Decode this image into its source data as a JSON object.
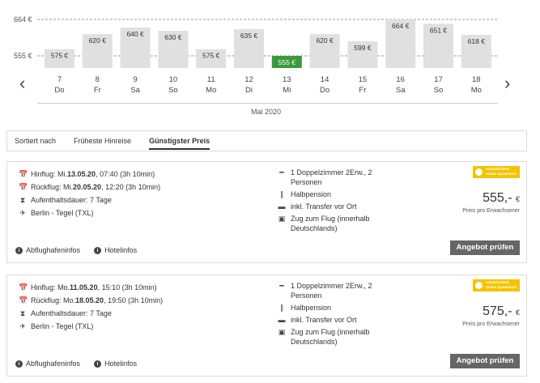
{
  "chart_data": {
    "type": "bar",
    "y_ticks": [
      "664 €",
      "555 €"
    ],
    "categories": [
      "7 Do",
      "8 Fr",
      "9 Sa",
      "10 So",
      "11 Mo",
      "12 Di",
      "13 Mi",
      "14 Do",
      "15 Fr",
      "16 Sa",
      "17 So",
      "18 Mo"
    ],
    "days": [
      {
        "num": "7",
        "wd": "Do"
      },
      {
        "num": "8",
        "wd": "Fr"
      },
      {
        "num": "9",
        "wd": "Sa"
      },
      {
        "num": "10",
        "wd": "So"
      },
      {
        "num": "11",
        "wd": "Mo"
      },
      {
        "num": "12",
        "wd": "Di"
      },
      {
        "num": "13",
        "wd": "Mi"
      },
      {
        "num": "14",
        "wd": "Do"
      },
      {
        "num": "15",
        "wd": "Fr"
      },
      {
        "num": "16",
        "wd": "Sa"
      },
      {
        "num": "17",
        "wd": "So"
      },
      {
        "num": "18",
        "wd": "Mo"
      }
    ],
    "values": [
      575,
      620,
      640,
      630,
      575,
      635,
      555,
      620,
      599,
      664,
      651,
      618
    ],
    "labels": [
      "575 €",
      "620 €",
      "640 €",
      "630 €",
      "575 €",
      "635 €",
      "555 €",
      "620 €",
      "599 €",
      "664 €",
      "651 €",
      "618 €"
    ],
    "selected_index": 6,
    "ylim": [
      540,
      664
    ],
    "xlabel": "Mai 2020",
    "bar_color": "#e0e0e0",
    "selected_color": "#3a9a3a"
  },
  "sort": {
    "label": "Sortiert nach",
    "option1": "Früheste Hinreise",
    "option2": "Günstigster Preis"
  },
  "offers": [
    {
      "hin_prefix": "Hinflug: Mi. ",
      "hin_date": "13.05.20",
      "hin_rest": ", 07:40 (3h 10min)",
      "rueck_prefix": "Rückflug: Mi. ",
      "rueck_date": "20.05.20",
      "rueck_rest": ", 12:20 (3h 10min)",
      "stay": "Aufenthaltsdauer: 7 Tage",
      "airport": "Berlin - Tegel (TXL)",
      "room": "1 Doppelzimmer 2Erw., 2 Personen",
      "board": "Halbpension",
      "transfer": "inkl. Transfer vor Ort",
      "train": "Zug zum Flug (innerhalb Deutschlands)",
      "logo_text": "schauinsland reisen dynamisch",
      "price": "555,-",
      "currency": "€",
      "price_note": "Preis pro Erwachsener",
      "button": "Angebot prüfen",
      "link1": "Abflughafeninfos",
      "link2": "Hotelinfos"
    },
    {
      "hin_prefix": "Hinflug: Mo. ",
      "hin_date": "11.05.20",
      "hin_rest": ", 15:10 (3h 10min)",
      "rueck_prefix": "Rückflug: Mo. ",
      "rueck_date": "18.05.20",
      "rueck_rest": ", 19:50 (3h 10min)",
      "stay": "Aufenthaltsdauer: 7 Tage",
      "airport": "Berlin - Tegel (TXL)",
      "room": "1 Doppelzimmer 2Erw., 2 Personen",
      "board": "Halbpension",
      "transfer": "inkl. Transfer vor Ort",
      "train": "Zug zum Flug (innerhalb Deutschlands)",
      "logo_text": "schauinsland reisen dynamisch",
      "price": "575,-",
      "currency": "€",
      "price_note": "Preis pro Erwachsener",
      "button": "Angebot prüfen",
      "link1": "Abflughafeninfos",
      "link2": "Hotelinfos"
    }
  ]
}
